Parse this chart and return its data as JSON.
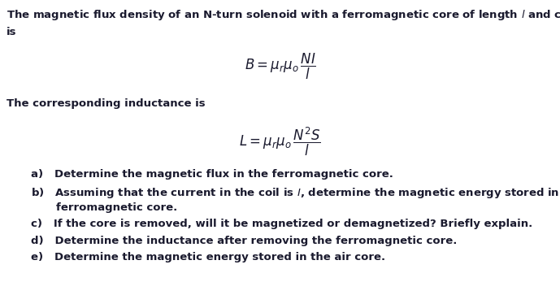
{
  "bg_color": "#ffffff",
  "text_color": "#1a1a2e",
  "figsize": [
    6.89,
    3.47
  ],
  "dpi": 100,
  "font_size_main": 9.5,
  "font_size_formula": 12,
  "font_weight": "bold",
  "line1": "The magnetic flux density of an N-turn solenoid with a ferromagnetic core of length $\\it{l}$ and cross section $\\it{S}$",
  "line2": "is",
  "formula_B": "$B = \\mu_r\\mu_o\\,\\dfrac{NI}{l}$",
  "inductance_text": "The corresponding inductance is",
  "formula_L": "$L = \\mu_r\\mu_o\\,\\dfrac{N^2S}{l}$",
  "list_items_a": "a)   Determine the magnetic flux in the ferromagnetic core.",
  "list_items_b1": "b)   Assuming that the current in the coil is $\\it{I}$, determine the magnetic energy stored in the",
  "list_items_b2": "        ferromagnetic core.",
  "list_items_c": "c)   If the core is removed, will it be magnetized or demagnetized? Briefly explain.",
  "list_items_d": "d)   Determine the inductance after removing the ferromagnetic core.",
  "list_items_e": "e)   Determine the magnetic energy stored in the air core."
}
